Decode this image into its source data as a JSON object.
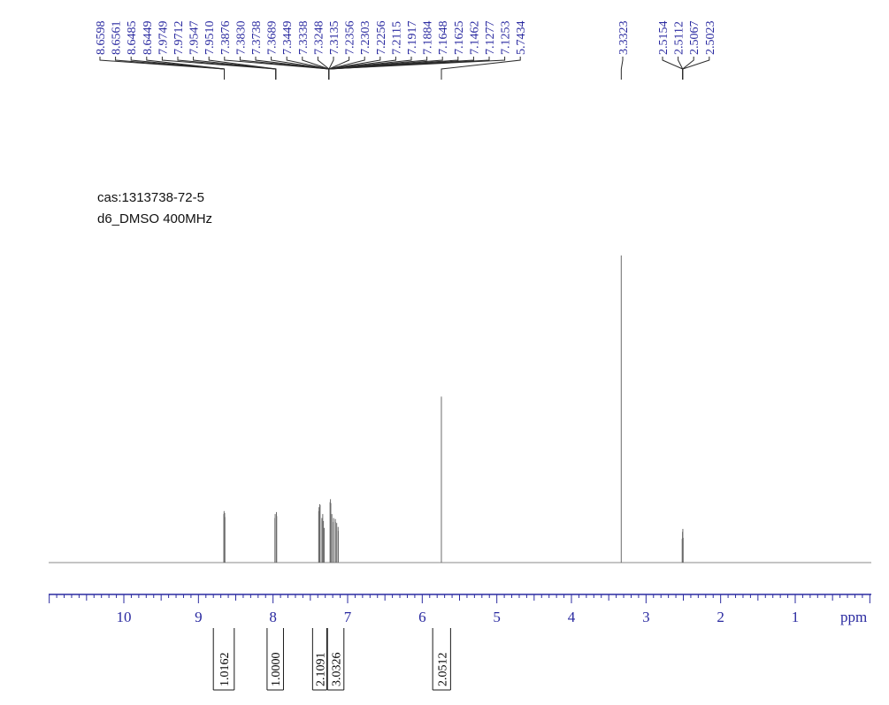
{
  "annotations": [
    "cas:1313738-72-5",
    "d6_DMSO 400MHz"
  ],
  "chart_data": {
    "type": "line",
    "title": "",
    "xlabel": "ppm",
    "xlim": [
      11.0,
      0.0
    ],
    "x_axis_reversed": true,
    "x_ticks": [
      10,
      9,
      8,
      7,
      6,
      5,
      4,
      3,
      2,
      1
    ],
    "ylabel": "",
    "grid": false,
    "peak_label_groups": [
      {
        "labels": [
          "8.6598",
          "8.6561",
          "8.6485",
          "8.6449"
        ],
        "anchor": 8.654
      },
      {
        "labels": [
          "7.9749",
          "7.9712",
          "7.9547",
          "7.9510"
        ],
        "anchor": 7.963
      },
      {
        "labels": [
          "7.3876",
          "7.3830",
          "7.3738",
          "7.3689",
          "7.3449",
          "7.3338",
          "7.3248",
          "7.3135",
          "7.2356",
          "7.2303",
          "7.2256",
          "7.2115",
          "7.1917",
          "7.1884",
          "7.1648",
          "7.1625",
          "7.1462",
          "7.1277",
          "7.1253"
        ],
        "anchor": 7.25
      },
      {
        "labels": [
          "5.7434"
        ],
        "anchor": 5.743
      },
      {
        "labels": [
          "3.3323"
        ],
        "anchor": 3.332
      },
      {
        "labels": [
          "2.5154",
          "2.5112",
          "2.5067",
          "2.5023"
        ],
        "anchor": 2.509
      }
    ],
    "peaks": [
      {
        "ppm": 8.6598,
        "height": 0.098
      },
      {
        "ppm": 8.6561,
        "height": 0.104
      },
      {
        "ppm": 8.6485,
        "height": 0.1
      },
      {
        "ppm": 8.6449,
        "height": 0.092
      },
      {
        "ppm": 7.9749,
        "height": 0.09
      },
      {
        "ppm": 7.9712,
        "height": 0.098
      },
      {
        "ppm": 7.9547,
        "height": 0.102
      },
      {
        "ppm": 7.951,
        "height": 0.094
      },
      {
        "ppm": 7.3876,
        "height": 0.104
      },
      {
        "ppm": 7.383,
        "height": 0.112
      },
      {
        "ppm": 7.3738,
        "height": 0.118
      },
      {
        "ppm": 7.3689,
        "height": 0.116
      },
      {
        "ppm": 7.3449,
        "height": 0.09
      },
      {
        "ppm": 7.3338,
        "height": 0.098
      },
      {
        "ppm": 7.3248,
        "height": 0.084
      },
      {
        "ppm": 7.3135,
        "height": 0.07
      },
      {
        "ppm": 7.2356,
        "height": 0.122
      },
      {
        "ppm": 7.2303,
        "height": 0.128
      },
      {
        "ppm": 7.2256,
        "height": 0.12
      },
      {
        "ppm": 7.2115,
        "height": 0.098
      },
      {
        "ppm": 7.1917,
        "height": 0.082
      },
      {
        "ppm": 7.1884,
        "height": 0.09
      },
      {
        "ppm": 7.1648,
        "height": 0.088
      },
      {
        "ppm": 7.1625,
        "height": 0.082
      },
      {
        "ppm": 7.1462,
        "height": 0.08
      },
      {
        "ppm": 7.1277,
        "height": 0.072
      },
      {
        "ppm": 7.1253,
        "height": 0.064
      },
      {
        "ppm": 5.7434,
        "height": 0.335
      },
      {
        "ppm": 3.3323,
        "height": 0.62
      },
      {
        "ppm": 2.5154,
        "height": 0.048
      },
      {
        "ppm": 2.5112,
        "height": 0.062
      },
      {
        "ppm": 2.5067,
        "height": 0.068
      },
      {
        "ppm": 2.5023,
        "height": 0.05
      }
    ],
    "integrals": [
      {
        "value": "1.0162",
        "from": 8.8,
        "to": 8.52
      },
      {
        "value": "1.0000",
        "from": 8.08,
        "to": 7.86
      },
      {
        "value": "2.1091",
        "from": 7.47,
        "to": 7.28
      },
      {
        "value": "3.0326",
        "from": 7.27,
        "to": 7.05
      },
      {
        "value": "2.0512",
        "from": 5.86,
        "to": 5.62
      }
    ]
  }
}
